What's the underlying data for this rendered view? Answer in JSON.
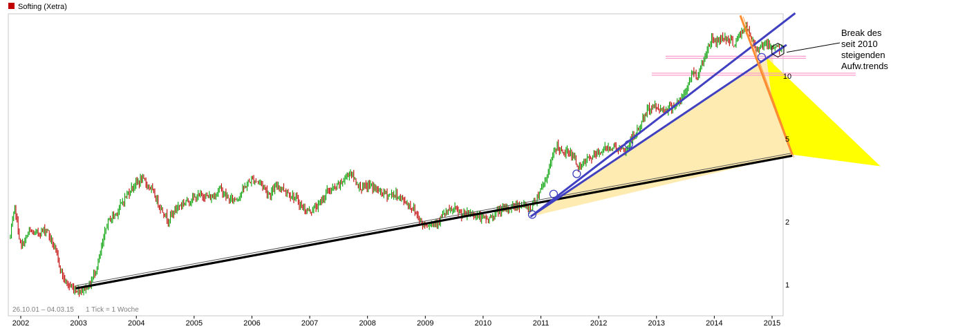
{
  "chart_data": {
    "type": "line",
    "title": "Softing (Xetra)",
    "date_range_text": "26.10.01 – 04.03.15",
    "tick_info": "1 Tick = 1 Woche",
    "y_scale": "log",
    "ylim": [
      0.78,
      20
    ],
    "x_tick_labels": [
      "2002",
      "2003",
      "2004",
      "2005",
      "2006",
      "2007",
      "2008",
      "2009",
      "2010",
      "2011",
      "2012",
      "2013",
      "2014",
      "2015"
    ],
    "y_tick_labels": [
      "1",
      "2",
      "5",
      "10"
    ],
    "y_tick_values": [
      1,
      2,
      5,
      10
    ],
    "colors": {
      "candle_up": "#00a000",
      "candle_down": "#c00000",
      "long_trend": "#000000",
      "rising_trend": "#4040c0",
      "falling_trend": "#ff8c30",
      "fill_light": "#fde9a8",
      "fill_strong": "#ffff00",
      "support_zone": "#ff9ccf",
      "title_marker": "#c00000"
    },
    "series": [
      {
        "type": "price",
        "points": [
          [
            2001.82,
            1.7
          ],
          [
            2001.9,
            2.35
          ],
          [
            2002.0,
            1.5
          ],
          [
            2002.15,
            1.8
          ],
          [
            2002.25,
            1.75
          ],
          [
            2002.45,
            1.85
          ],
          [
            2002.6,
            1.45
          ],
          [
            2002.75,
            1.05
          ],
          [
            2002.85,
            0.98
          ],
          [
            2002.95,
            0.95
          ],
          [
            2003.05,
            0.94
          ],
          [
            2003.2,
            1.0
          ],
          [
            2003.35,
            1.3
          ],
          [
            2003.5,
            2.0
          ],
          [
            2003.65,
            2.2
          ],
          [
            2003.8,
            2.6
          ],
          [
            2003.95,
            3.0
          ],
          [
            2004.1,
            3.2
          ],
          [
            2004.25,
            2.9
          ],
          [
            2004.4,
            2.4
          ],
          [
            2004.55,
            2.05
          ],
          [
            2004.7,
            2.35
          ],
          [
            2004.85,
            2.5
          ],
          [
            2005.0,
            2.6
          ],
          [
            2005.15,
            2.7
          ],
          [
            2005.3,
            2.6
          ],
          [
            2005.45,
            2.9
          ],
          [
            2005.6,
            2.55
          ],
          [
            2005.75,
            2.6
          ],
          [
            2005.9,
            3.0
          ],
          [
            2006.0,
            3.2
          ],
          [
            2006.15,
            3.1
          ],
          [
            2006.3,
            2.7
          ],
          [
            2006.45,
            3.0
          ],
          [
            2006.6,
            2.8
          ],
          [
            2006.75,
            2.6
          ],
          [
            2006.9,
            2.3
          ],
          [
            2007.0,
            2.25
          ],
          [
            2007.15,
            2.4
          ],
          [
            2007.3,
            2.8
          ],
          [
            2007.45,
            2.9
          ],
          [
            2007.6,
            3.2
          ],
          [
            2007.7,
            3.5
          ],
          [
            2007.8,
            3.1
          ],
          [
            2007.9,
            2.9
          ],
          [
            2008.05,
            3.0
          ],
          [
            2008.2,
            2.8
          ],
          [
            2008.35,
            2.7
          ],
          [
            2008.5,
            2.7
          ],
          [
            2008.65,
            2.5
          ],
          [
            2008.8,
            2.3
          ],
          [
            2008.95,
            1.95
          ],
          [
            2009.05,
            1.95
          ],
          [
            2009.2,
            2.0
          ],
          [
            2009.35,
            2.2
          ],
          [
            2009.5,
            2.3
          ],
          [
            2009.65,
            2.15
          ],
          [
            2009.8,
            2.2
          ],
          [
            2009.95,
            2.1
          ],
          [
            2010.1,
            2.05
          ],
          [
            2010.25,
            2.25
          ],
          [
            2010.4,
            2.3
          ],
          [
            2010.55,
            2.4
          ],
          [
            2010.7,
            2.4
          ],
          [
            2010.82,
            2.3
          ],
          [
            2010.92,
            2.6
          ],
          [
            2011.0,
            2.9
          ],
          [
            2011.1,
            3.3
          ],
          [
            2011.2,
            4.1
          ],
          [
            2011.28,
            4.7
          ],
          [
            2011.38,
            4.2
          ],
          [
            2011.48,
            4.4
          ],
          [
            2011.58,
            4.0
          ],
          [
            2011.68,
            3.6
          ],
          [
            2011.78,
            3.95
          ],
          [
            2011.9,
            4.1
          ],
          [
            2012.0,
            4.3
          ],
          [
            2012.12,
            4.5
          ],
          [
            2012.25,
            4.6
          ],
          [
            2012.35,
            4.5
          ],
          [
            2012.45,
            4.3
          ],
          [
            2012.55,
            4.9
          ],
          [
            2012.65,
            5.3
          ],
          [
            2012.75,
            6.1
          ],
          [
            2012.85,
            6.9
          ],
          [
            2012.95,
            7.2
          ],
          [
            2013.08,
            6.9
          ],
          [
            2013.2,
            7.0
          ],
          [
            2013.32,
            7.3
          ],
          [
            2013.42,
            7.6
          ],
          [
            2013.52,
            8.6
          ],
          [
            2013.62,
            10.5
          ],
          [
            2013.7,
            10.0
          ],
          [
            2013.78,
            11.3
          ],
          [
            2013.88,
            13.5
          ],
          [
            2013.95,
            15.0
          ],
          [
            2014.05,
            14.7
          ],
          [
            2014.15,
            15.5
          ],
          [
            2014.25,
            15.0
          ],
          [
            2014.35,
            14.2
          ],
          [
            2014.45,
            15.8
          ],
          [
            2014.55,
            17.2
          ],
          [
            2014.62,
            15.5
          ],
          [
            2014.72,
            13.5
          ],
          [
            2014.8,
            14.0
          ],
          [
            2014.88,
            14.5
          ],
          [
            2014.95,
            13.8
          ],
          [
            2015.05,
            14.0
          ],
          [
            2015.12,
            13.6
          ],
          [
            2015.18,
            13.2
          ]
        ]
      },
      {
        "name": "long-term trendline",
        "type": "trendline",
        "points": [
          [
            2002.95,
            0.96
          ],
          [
            2015.35,
            4.15
          ]
        ]
      },
      {
        "name": "rising trendline since 2010",
        "type": "trendline",
        "points": [
          [
            2010.82,
            2.12
          ],
          [
            2015.0,
            12.45
          ]
        ]
      },
      {
        "name": "rising trendline upper",
        "type": "trendline",
        "points": [
          [
            2010.9,
            2.2
          ],
          [
            2015.4,
            20
          ]
        ]
      },
      {
        "name": "falling trendline",
        "type": "trendline",
        "points": [
          [
            2014.45,
            19.5
          ],
          [
            2015.35,
            4.2
          ]
        ]
      }
    ],
    "support_zones": [
      12.3,
      10.2
    ],
    "touch_markers": [
      [
        2010.85,
        2.17
      ],
      [
        2011.22,
        2.72
      ],
      [
        2011.62,
        3.4
      ],
      [
        2012.52,
        4.7
      ],
      [
        2014.82,
        12.3
      ],
      [
        2015.1,
        13.3
      ]
    ],
    "annotations": [
      {
        "lines": [
          "Break des",
          "seit 2010",
          "steigenden",
          "Aufw.trends"
        ],
        "target": [
          2015.18,
          13.2
        ]
      }
    ]
  }
}
